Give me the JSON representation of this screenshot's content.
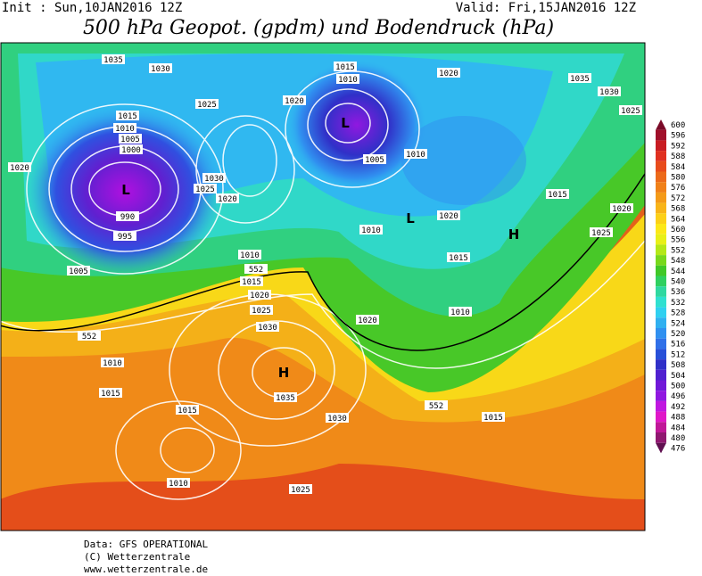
{
  "header": {
    "init": "Init : Sun,10JAN2016 12Z",
    "valid": "Valid: Fri,15JAN2016 12Z",
    "title": "500 hPa Geopot. (gpdm) und Bodendruck (hPa)"
  },
  "map": {
    "isobar_labels": [
      1035,
      1030,
      1025,
      1015,
      1010,
      1005,
      1000,
      1020,
      990,
      995,
      1005,
      1030,
      1025,
      1020,
      1020,
      1015,
      1010,
      1005,
      1010,
      1020,
      1035,
      1030,
      1025,
      1015,
      1020,
      1020,
      1025,
      1010,
      1015,
      1010,
      552,
      1015,
      1020,
      1025,
      1030,
      1035,
      1020,
      1010,
      552,
      1010,
      1015,
      1015,
      1010,
      1030,
      552,
      1015,
      1025
    ],
    "systems": [
      "L",
      "L",
      "L",
      "H",
      "H"
    ]
  },
  "colorbar": {
    "labels": [
      600,
      596,
      592,
      588,
      584,
      580,
      576,
      572,
      568,
      564,
      560,
      556,
      552,
      548,
      544,
      540,
      536,
      532,
      528,
      524,
      520,
      516,
      512,
      508,
      504,
      500,
      496,
      492,
      488,
      484,
      480,
      476
    ],
    "colors": [
      "#7a0a28",
      "#a0102a",
      "#c81c22",
      "#e03020",
      "#e84c1c",
      "#ec6a1a",
      "#f08018",
      "#f49a18",
      "#f8b418",
      "#fcd018",
      "#fce818",
      "#e8f018",
      "#b4e818",
      "#78d81c",
      "#40c828",
      "#30d060",
      "#30d8a0",
      "#30e0d0",
      "#30d0f0",
      "#30b0f0",
      "#3090f0",
      "#3070e8",
      "#2850d8",
      "#3030c8",
      "#5020d0",
      "#7018d8",
      "#9018e0",
      "#c018e0",
      "#e018c8",
      "#c01898",
      "#901870",
      "#601050"
    ]
  },
  "footer": {
    "lines": [
      "Data: GFS OPERATIONAL",
      "(C) Wetterzentrale",
      "www.wetterzentrale.de"
    ]
  }
}
